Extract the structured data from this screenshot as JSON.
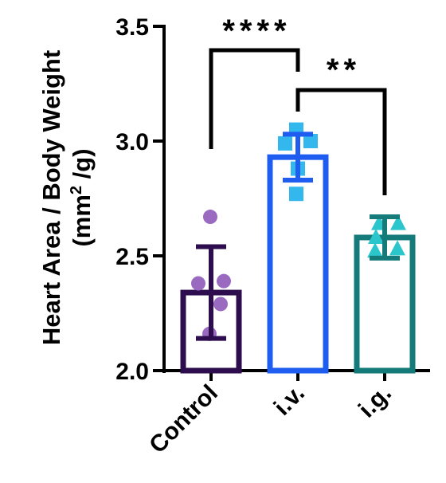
{
  "chart_data": {
    "type": "bar",
    "categories": [
      "Control",
      "i.v.",
      "i.g."
    ],
    "series": [
      {
        "values": [
          2.34,
          2.93,
          2.58
        ],
        "error": [
          0.2,
          0.1,
          0.09
        ]
      }
    ],
    "points": [
      [
        2.67,
        2.39,
        2.38,
        2.29,
        2.16
      ],
      [
        3.05,
        3.0,
        2.99,
        2.88,
        2.77
      ],
      [
        2.64,
        2.64,
        2.58,
        2.53,
        2.52
      ]
    ],
    "colors": [
      "#2e0d4f",
      "#1f5cf0",
      "#157a7a"
    ],
    "point_colors": [
      "#9a6ac0",
      "#33b8ee",
      "#2bc6cc"
    ],
    "point_shapes": [
      "circle",
      "square",
      "triangle"
    ],
    "ylabel_line1": "Heart Area / Body Weight",
    "ylabel_unit_pre": "(mm",
    "ylabel_unit_sup": "2",
    "ylabel_unit_post": " /g)",
    "ylim": [
      2.0,
      3.5
    ],
    "yticks": [
      "2.0",
      "2.5",
      "3.0",
      "3.5"
    ],
    "significance": [
      {
        "from": 0,
        "to": 1,
        "label": "****"
      },
      {
        "from": 1,
        "to": 2,
        "label": "**"
      }
    ]
  }
}
